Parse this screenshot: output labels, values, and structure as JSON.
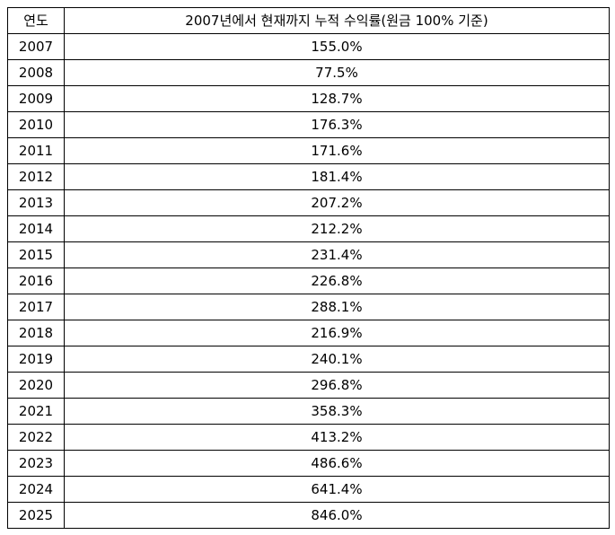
{
  "table": {
    "headers": {
      "year": "연도",
      "rate": "2007년에서 현재까지 누적 수익률(원금 100% 기준)"
    },
    "rows": [
      {
        "year": "2007",
        "rate": "155.0%"
      },
      {
        "year": "2008",
        "rate": "77.5%"
      },
      {
        "year": "2009",
        "rate": "128.7%"
      },
      {
        "year": "2010",
        "rate": "176.3%"
      },
      {
        "year": "2011",
        "rate": "171.6%"
      },
      {
        "year": "2012",
        "rate": "181.4%"
      },
      {
        "year": "2013",
        "rate": "207.2%"
      },
      {
        "year": "2014",
        "rate": "212.2%"
      },
      {
        "year": "2015",
        "rate": "231.4%"
      },
      {
        "year": "2016",
        "rate": "226.8%"
      },
      {
        "year": "2017",
        "rate": "288.1%"
      },
      {
        "year": "2018",
        "rate": "216.9%"
      },
      {
        "year": "2019",
        "rate": "240.1%"
      },
      {
        "year": "2020",
        "rate": "296.8%"
      },
      {
        "year": "2021",
        "rate": "358.3%"
      },
      {
        "year": "2022",
        "rate": "413.2%"
      },
      {
        "year": "2023",
        "rate": "486.6%"
      },
      {
        "year": "2024",
        "rate": "641.4%"
      },
      {
        "year": "2025",
        "rate": "846.0%"
      }
    ]
  }
}
